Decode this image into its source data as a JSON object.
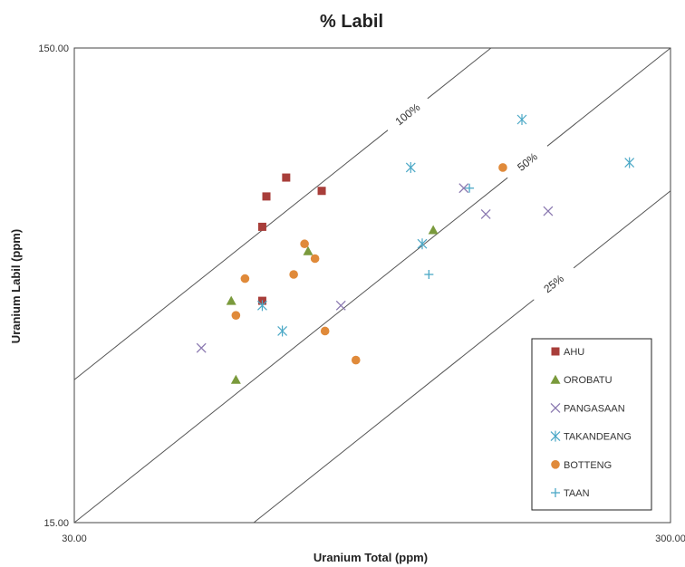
{
  "chart_data": {
    "type": "scatter",
    "title": "% Labil",
    "xlabel": "Uranium Total (ppm)",
    "ylabel": "Uranium Labil (ppm)",
    "xscale": "log",
    "yscale": "log",
    "xlim": [
      30,
      300
    ],
    "ylim": [
      15,
      150
    ],
    "x_tick_labels": [
      "30.00",
      "300.00"
    ],
    "y_tick_labels": [
      "15.00",
      "150.00"
    ],
    "grid": false,
    "legend_position": "bottom-right",
    "reference_lines": [
      {
        "label": "100%",
        "ratio": 1.0
      },
      {
        "label": "50%",
        "ratio": 0.5
      },
      {
        "label": "25%",
        "ratio": 0.25
      }
    ],
    "series": [
      {
        "name": "AHU",
        "marker": "square",
        "color": "#a83e3a",
        "points": [
          [
            68,
            80
          ],
          [
            63,
            73
          ],
          [
            78,
            75
          ],
          [
            62,
            63
          ],
          [
            62,
            44
          ]
        ]
      },
      {
        "name": "OROBATU",
        "marker": "triangle",
        "color": "#7a9a3c",
        "points": [
          [
            55,
            44
          ],
          [
            74,
            56
          ],
          [
            120,
            62
          ],
          [
            56,
            30
          ]
        ]
      },
      {
        "name": "PANGASAAN",
        "marker": "x",
        "color": "#8a78b0",
        "points": [
          [
            49,
            35
          ],
          [
            84,
            43
          ],
          [
            135,
            76
          ],
          [
            147,
            67
          ],
          [
            187,
            68
          ]
        ]
      },
      {
        "name": "TAKANDEANG",
        "marker": "asterisk",
        "color": "#4ba8c6",
        "points": [
          [
            169,
            106
          ],
          [
            110,
            84
          ],
          [
            115,
            58
          ],
          [
            62,
            43
          ],
          [
            67,
            38
          ],
          [
            256,
            86
          ]
        ]
      },
      {
        "name": "BOTTENG",
        "marker": "circle",
        "color": "#e08a3a",
        "points": [
          [
            157,
            84
          ],
          [
            73,
            58
          ],
          [
            76,
            54
          ],
          [
            70,
            50
          ],
          [
            58,
            49
          ],
          [
            56,
            41
          ],
          [
            79,
            38
          ],
          [
            89,
            33
          ]
        ]
      },
      {
        "name": "TAAN",
        "marker": "plus",
        "color": "#4ba8c6",
        "points": [
          [
            138,
            76
          ],
          [
            118,
            50
          ]
        ]
      }
    ]
  }
}
